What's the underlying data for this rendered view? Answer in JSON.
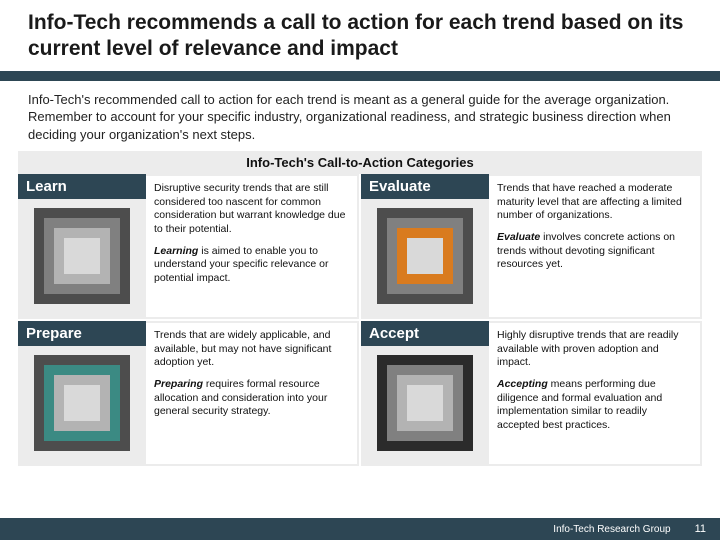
{
  "title": "Info-Tech recommends a call to action for each trend based on its current level of relevance and impact",
  "intro": "Info-Tech's recommended call to action for each trend is meant as a general guide for the average organization. Remember to account for your specific industry, organizational readiness, and strategic business direction when deciding your organization's next steps.",
  "section_header": "Info-Tech's Call-to-Action Categories",
  "colors": {
    "band": "#2d4654",
    "panel_bg": "#ececec",
    "grey1": "#4d4d4d",
    "grey2": "#808080",
    "grey3": "#b3b3b3",
    "grey4": "#d9d9d9",
    "orange": "#d97b1f",
    "teal": "#3b8a83",
    "dark": "#2b2b2b"
  },
  "squares": {
    "sizes": [
      96,
      76,
      56,
      36
    ],
    "tops": [
      6,
      16,
      26,
      36
    ]
  },
  "cells": [
    {
      "key": "learn",
      "label": "Learn",
      "highlight_index": 3,
      "highlight_color": "#d9d9d9",
      "p1": "Disruptive security trends that are still considered too nascent for common consideration but warrant knowledge due to their potential.",
      "p2_em": "Learning",
      "p2_rest": " is aimed to enable you to understand your specific relevance or potential impact."
    },
    {
      "key": "evaluate",
      "label": "Evaluate",
      "highlight_index": 2,
      "highlight_color": "#d97b1f",
      "p1": "Trends that have reached a moderate maturity level that are affecting a limited number of organizations.",
      "p2_em": "Evaluate",
      "p2_rest": " involves concrete actions on trends without devoting significant resources yet."
    },
    {
      "key": "prepare",
      "label": "Prepare",
      "highlight_index": 1,
      "highlight_color": "#3b8a83",
      "p1": "Trends that are widely applicable, and available, but may not have significant adoption yet.",
      "p2_em": "Preparing",
      "p2_rest": " requires formal resource allocation and consideration into your general security strategy."
    },
    {
      "key": "accept",
      "label": "Accept",
      "highlight_index": 0,
      "highlight_color": "#2b2b2b",
      "p1": "Highly disruptive trends that are readily available with proven adoption and impact.",
      "p2_em": "Accepting",
      "p2_rest": " means performing due diligence and formal evaluation and implementation similar to readily accepted best practices."
    }
  ],
  "footer": {
    "org": "Info-Tech Research Group",
    "page": "11"
  }
}
